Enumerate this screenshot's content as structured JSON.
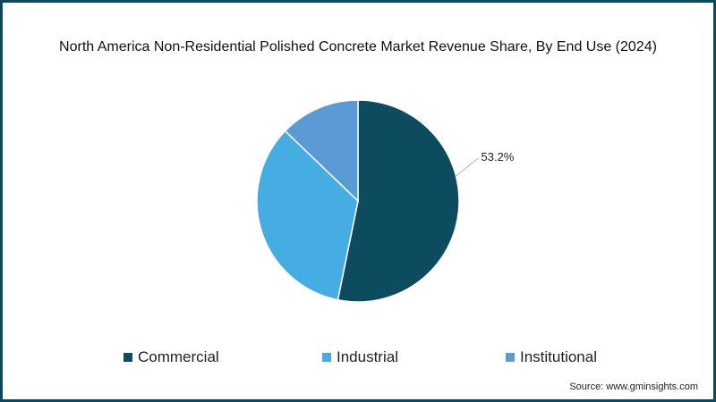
{
  "chart_data": {
    "type": "pie",
    "title": "North America Non-Residential Polished Concrete Market Revenue Share, By End Use (2024)",
    "categories": [
      "Commercial",
      "Industrial",
      "Institutional"
    ],
    "values": [
      53.2,
      34.0,
      12.8
    ],
    "colors": [
      "#0d4b5f",
      "#45ade2",
      "#5b9bd5"
    ],
    "data_labels": [
      "53.2%",
      "",
      ""
    ],
    "legend_position": "bottom"
  },
  "source": "Source: www.gminsights.com"
}
